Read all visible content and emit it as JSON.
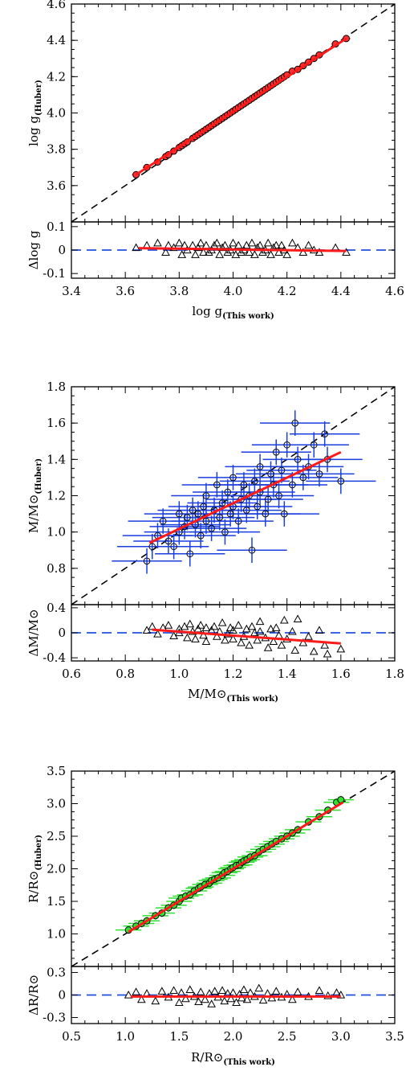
{
  "figure": {
    "panels": [
      {
        "id": "logg",
        "ylabel_main": "log g",
        "ylabel_sub": "(Huber)",
        "ylabel_resid": "Δlog g",
        "xlabel_main": "log g",
        "xlabel_sub": "(This work)",
        "point_color": "#ff3030",
        "errorbar_color": "#ff3030",
        "fit_color": "#ff1a1a"
      },
      {
        "id": "mass",
        "ylabel_main": "M/M⊙",
        "ylabel_sub": "(Huber)",
        "ylabel_resid": "ΔM/M⊙",
        "xlabel_main": "M/M⊙",
        "xlabel_sub": "(This work)",
        "point_color": "#2040d0",
        "errorbar_color": "#1a3fe0",
        "fit_color": "#ff1a1a"
      },
      {
        "id": "radius",
        "ylabel_main": "R/R⊙",
        "ylabel_sub": "(Huber)",
        "ylabel_resid": "ΔR/R⊙",
        "xlabel_main": "R/R⊙",
        "xlabel_sub": "(This work)",
        "point_color": "#30e030",
        "errorbar_color": "#30e030",
        "fit_color": "#ff1a1a"
      }
    ]
  },
  "chart_data": [
    {
      "type": "scatter",
      "xlabel": "log g(This work)",
      "ylabel": "log g(Huber)",
      "xlim": [
        3.4,
        4.6
      ],
      "ylim_main": [
        3.4,
        4.6
      ],
      "ylim_resid": [
        -0.12,
        0.12
      ],
      "x_ticks": [
        "3.4",
        "3.6",
        "3.8",
        "4.0",
        "4.2",
        "4.4",
        "4.6"
      ],
      "y_ticks_main": [
        "3.6",
        "3.8",
        "4.0",
        "4.2",
        "4.4",
        "4.6"
      ],
      "y_ticks_resid": [
        "0.1",
        "0",
        "-0.1"
      ],
      "one_to_one_line": true,
      "fit_line": {
        "x": [
          3.64,
          4.42
        ],
        "y": [
          3.66,
          4.41
        ]
      },
      "resid_fit_line": {
        "x": [
          3.65,
          4.42
        ],
        "y": [
          0.008,
          -0.004
        ]
      },
      "x": [
        3.64,
        3.68,
        3.72,
        3.75,
        3.76,
        3.78,
        3.8,
        3.81,
        3.82,
        3.83,
        3.85,
        3.86,
        3.87,
        3.88,
        3.89,
        3.9,
        3.91,
        3.92,
        3.93,
        3.94,
        3.95,
        3.96,
        3.97,
        3.98,
        3.99,
        4.0,
        4.01,
        4.02,
        4.03,
        4.04,
        4.05,
        4.06,
        4.07,
        4.08,
        4.09,
        4.1,
        4.11,
        4.12,
        4.13,
        4.14,
        4.15,
        4.16,
        4.17,
        4.18,
        4.19,
        4.2,
        4.22,
        4.24,
        4.26,
        4.28,
        4.3,
        4.32,
        4.38,
        4.42
      ],
      "y": [
        3.66,
        3.7,
        3.73,
        3.76,
        3.77,
        3.79,
        3.81,
        3.82,
        3.83,
        3.84,
        3.86,
        3.87,
        3.88,
        3.89,
        3.9,
        3.91,
        3.92,
        3.93,
        3.94,
        3.95,
        3.96,
        3.97,
        3.98,
        3.99,
        4.0,
        4.01,
        4.02,
        4.03,
        4.04,
        4.05,
        4.06,
        4.07,
        4.08,
        4.09,
        4.1,
        4.11,
        4.12,
        4.13,
        4.14,
        4.15,
        4.16,
        4.17,
        4.18,
        4.19,
        4.2,
        4.21,
        4.23,
        4.24,
        4.26,
        4.28,
        4.3,
        4.32,
        4.38,
        4.41
      ],
      "resid": [
        0.01,
        0.02,
        0.03,
        -0.01,
        0.02,
        0.01,
        0.03,
        -0.02,
        0.02,
        0.0,
        0.02,
        -0.02,
        0.01,
        0.03,
        -0.01,
        0.02,
        -0.01,
        0.0,
        0.02,
        0.03,
        -0.02,
        0.01,
        0.02,
        -0.01,
        0.0,
        0.03,
        -0.02,
        0.02,
        -0.01,
        0.0,
        0.02,
        -0.01,
        0.03,
        -0.02,
        0.01,
        0.02,
        -0.01,
        0.0,
        0.03,
        -0.02,
        0.01,
        0.02,
        -0.01,
        0.02,
        0.0,
        -0.02,
        0.03,
        0.01,
        -0.01,
        0.02,
        0.0,
        -0.01,
        0.01,
        -0.01
      ]
    },
    {
      "type": "scatter",
      "xlabel": "M/M⊙(This work)",
      "ylabel": "M/M⊙(Huber)",
      "xlim": [
        0.6,
        1.8
      ],
      "ylim_main": [
        0.6,
        1.8
      ],
      "ylim_resid": [
        -0.45,
        0.45
      ],
      "x_ticks": [
        "0.6",
        "0.8",
        "1.0",
        "1.2",
        "1.4",
        "1.6",
        "1.8"
      ],
      "y_ticks_main": [
        "0.8",
        "1.0",
        "1.2",
        "1.4",
        "1.6",
        "1.8"
      ],
      "y_ticks_resid": [
        "0.4",
        "0",
        "-0.4"
      ],
      "one_to_one_line": true,
      "fit_line": {
        "x": [
          0.89,
          1.6
        ],
        "y": [
          0.94,
          1.44
        ]
      },
      "resid_fit_line": {
        "x": [
          0.9,
          1.6
        ],
        "y": [
          0.05,
          -0.17
        ]
      },
      "x": [
        0.88,
        0.9,
        0.92,
        0.94,
        0.96,
        0.98,
        1.0,
        1.0,
        1.02,
        1.03,
        1.04,
        1.05,
        1.06,
        1.07,
        1.08,
        1.09,
        1.1,
        1.1,
        1.12,
        1.13,
        1.14,
        1.15,
        1.16,
        1.17,
        1.18,
        1.19,
        1.2,
        1.2,
        1.22,
        1.23,
        1.24,
        1.25,
        1.26,
        1.27,
        1.28,
        1.29,
        1.3,
        1.3,
        1.32,
        1.33,
        1.34,
        1.35,
        1.36,
        1.37,
        1.38,
        1.39,
        1.4,
        1.42,
        1.43,
        1.44,
        1.46,
        1.48,
        1.5,
        1.52,
        1.54,
        1.55,
        1.6
      ],
      "y": [
        0.84,
        0.92,
        0.98,
        1.06,
        0.95,
        0.92,
        1.0,
        1.1,
        1.03,
        1.08,
        0.88,
        1.12,
        1.04,
        1.1,
        0.98,
        1.14,
        1.06,
        1.2,
        1.02,
        1.12,
        1.26,
        1.08,
        1.16,
        1.0,
        1.22,
        1.1,
        1.14,
        1.3,
        1.06,
        1.18,
        1.26,
        1.12,
        1.2,
        0.9,
        1.28,
        1.14,
        1.22,
        1.36,
        1.1,
        1.18,
        1.32,
        1.26,
        1.44,
        1.2,
        1.34,
        1.1,
        1.48,
        1.26,
        1.6,
        1.4,
        1.3,
        1.36,
        1.48,
        1.32,
        1.54,
        1.4,
        1.28
      ],
      "resid": [
        0.04,
        0.1,
        -0.02,
        0.08,
        0.12,
        -0.05,
        0.06,
        0.0,
        0.1,
        -0.08,
        0.14,
        0.02,
        -0.1,
        0.06,
        0.12,
        -0.04,
        0.08,
        -0.14,
        0.04,
        0.1,
        -0.06,
        0.02,
        0.16,
        -0.12,
        -0.02,
        0.08,
        -0.1,
        0.04,
        0.12,
        -0.16,
        -0.06,
        0.06,
        -0.2,
        0.1,
        0.0,
        -0.12,
        0.02,
        0.18,
        -0.08,
        -0.24,
        0.06,
        -0.14,
        0.08,
        -0.04,
        -0.2,
        0.2,
        -0.1,
        0.02,
        -0.28,
        0.22,
        -0.16,
        -0.06,
        -0.3,
        0.04,
        -0.2,
        -0.34,
        -0.26
      ]
    },
    {
      "type": "scatter",
      "xlabel": "R/R⊙(This work)",
      "ylabel": "R/R⊙(Huber)",
      "xlim": [
        0.5,
        3.5
      ],
      "ylim_main": [
        0.5,
        3.5
      ],
      "ylim_resid": [
        -0.38,
        0.38
      ],
      "x_ticks": [
        "0.5",
        "1.0",
        "1.5",
        "2.0",
        "2.5",
        "3.0",
        "3.5"
      ],
      "y_ticks_main": [
        "1.0",
        "1.5",
        "2.0",
        "2.5",
        "3.0",
        "3.5"
      ],
      "y_ticks_resid": [
        "0.3",
        "0",
        "-0.3"
      ],
      "one_to_one_line": true,
      "fit_line": {
        "x": [
          1.03,
          3.02
        ],
        "y": [
          1.03,
          3.02
        ]
      },
      "resid_fit_line": {
        "x": [
          1.05,
          3.0
        ],
        "y": [
          -0.02,
          -0.02
        ]
      },
      "x": [
        1.03,
        1.1,
        1.15,
        1.2,
        1.28,
        1.34,
        1.4,
        1.45,
        1.5,
        1.52,
        1.56,
        1.6,
        1.64,
        1.68,
        1.7,
        1.74,
        1.78,
        1.8,
        1.83,
        1.86,
        1.9,
        1.92,
        1.95,
        1.98,
        2.0,
        2.03,
        2.06,
        2.08,
        2.1,
        2.13,
        2.16,
        2.2,
        2.24,
        2.28,
        2.32,
        2.36,
        2.4,
        2.45,
        2.5,
        2.55,
        2.6,
        2.7,
        2.8,
        2.88,
        2.96,
        3.0
      ],
      "y": [
        1.06,
        1.12,
        1.16,
        1.2,
        1.28,
        1.32,
        1.4,
        1.44,
        1.5,
        1.55,
        1.58,
        1.6,
        1.66,
        1.7,
        1.72,
        1.76,
        1.78,
        1.82,
        1.84,
        1.86,
        1.9,
        1.94,
        1.96,
        2.0,
        2.02,
        2.05,
        2.06,
        2.1,
        2.12,
        2.14,
        2.18,
        2.2,
        2.26,
        2.3,
        2.34,
        2.38,
        2.42,
        2.46,
        2.5,
        2.55,
        2.6,
        2.72,
        2.8,
        2.9,
        3.02,
        3.06
      ],
      "resid": [
        0.0,
        0.04,
        -0.06,
        0.02,
        -0.08,
        0.05,
        -0.03,
        0.06,
        -0.1,
        0.03,
        -0.05,
        0.07,
        -0.02,
        -0.09,
        0.04,
        -0.06,
        0.02,
        -0.12,
        0.05,
        -0.03,
        0.06,
        -0.08,
        0.02,
        -0.05,
        0.03,
        -0.1,
        0.01,
        -0.04,
        0.07,
        -0.06,
        0.03,
        -0.02,
        0.09,
        -0.07,
        0.02,
        -0.04,
        0.05,
        -0.03,
        0.01,
        -0.06,
        0.04,
        -0.02,
        0.06,
        -0.01,
        0.03,
        0.0
      ]
    }
  ]
}
